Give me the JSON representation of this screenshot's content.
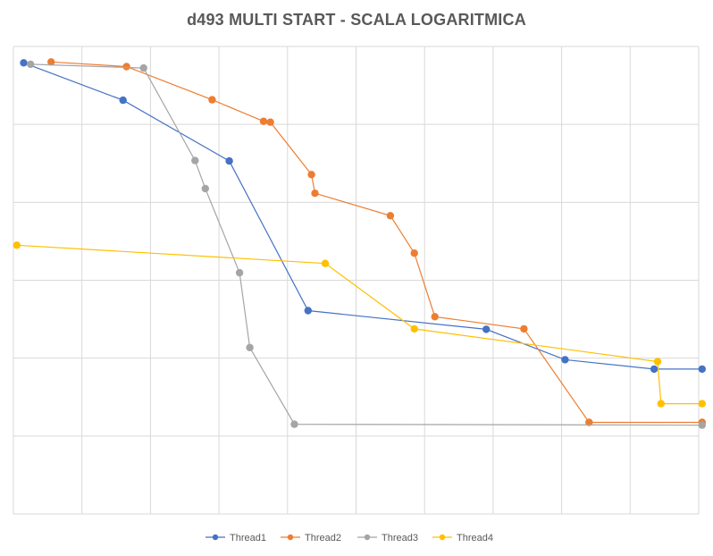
{
  "chart_data": {
    "type": "line",
    "title": "d493 MULTI START - SCALA LOGARITMICA",
    "xlabel": "",
    "ylabel": "",
    "xlim": [
      0,
      100
    ],
    "ylim": [
      0,
      100
    ],
    "grid": true,
    "legend_position": "bottom",
    "series": [
      {
        "name": "Thread1",
        "color": "#4472C4",
        "points": [
          [
            1.5,
            96.5
          ],
          [
            16,
            88.5
          ],
          [
            31.5,
            75.5
          ],
          [
            43,
            43.5
          ],
          [
            69,
            39.5
          ],
          [
            80.5,
            33
          ],
          [
            93.5,
            31
          ],
          [
            100.5,
            31
          ]
        ]
      },
      {
        "name": "Thread2",
        "color": "#ED7D31",
        "points": [
          [
            5.5,
            96.7
          ],
          [
            16.5,
            95.7
          ],
          [
            29,
            88.6
          ],
          [
            36.5,
            84
          ],
          [
            37.5,
            83.8
          ],
          [
            43.5,
            72.6
          ],
          [
            44,
            68.6
          ],
          [
            55,
            63.8
          ],
          [
            58.5,
            55.8
          ],
          [
            61.5,
            42.2
          ],
          [
            74.5,
            39.6
          ],
          [
            84,
            19.6
          ],
          [
            100.5,
            19.6
          ]
        ]
      },
      {
        "name": "Thread3",
        "color": "#A5A5A5",
        "points": [
          [
            2.5,
            96.2
          ],
          [
            19,
            95.4
          ],
          [
            26.5,
            75.6
          ],
          [
            28,
            69.6
          ],
          [
            33,
            51.6
          ],
          [
            34.5,
            35.6
          ],
          [
            41,
            19.2
          ],
          [
            100.5,
            19.0
          ]
        ]
      },
      {
        "name": "Thread4",
        "color": "#FFC000",
        "points": [
          [
            0.5,
            57.5
          ],
          [
            45.5,
            53.6
          ],
          [
            58.5,
            39.6
          ],
          [
            94,
            32.6
          ],
          [
            94.5,
            23.6
          ],
          [
            100.5,
            23.6
          ]
        ]
      }
    ]
  }
}
